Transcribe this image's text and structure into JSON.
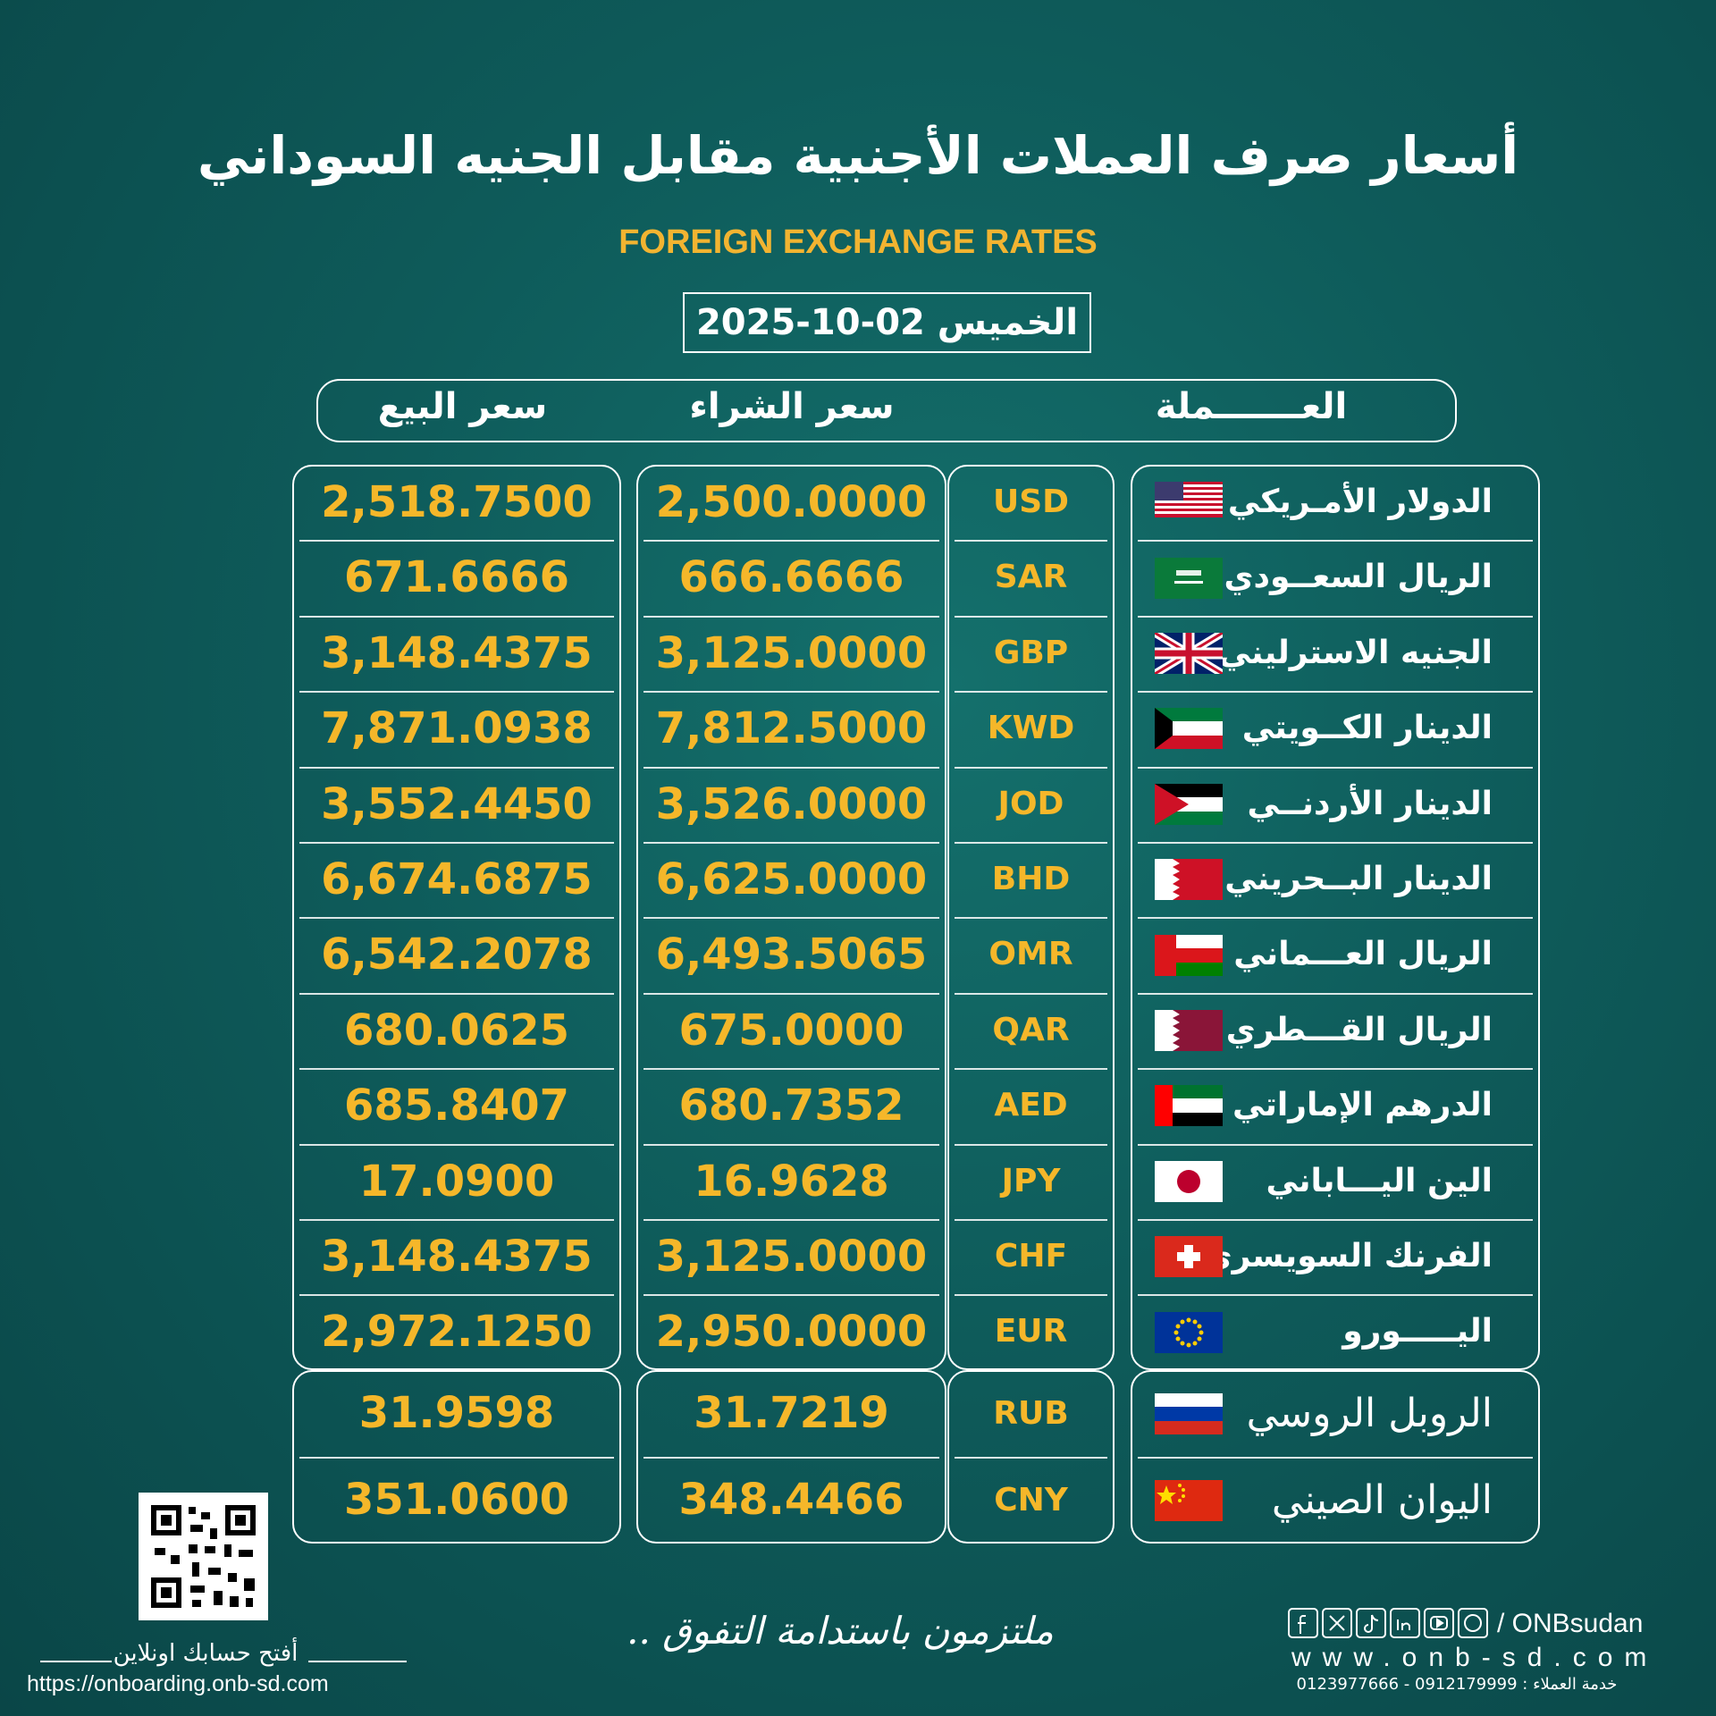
{
  "header": {
    "title": "أسعار صرف العملات الأجنبية مقابل الجنيه السوداني",
    "subtitle": "FOREIGN EXCHANGE RATES",
    "date": "الخميس 02-10-2025"
  },
  "table": {
    "columns": [
      "العـــــــملة",
      "سعر الشراء",
      "سعر البيع"
    ],
    "rows": [
      {
        "name": "الدولار الأمـريكي",
        "code": "USD",
        "buy": "2,500.0000",
        "sell": "2,518.7500"
      },
      {
        "name": "الريال السعــودي",
        "code": "SAR",
        "buy": "666.6666",
        "sell": "671.6666"
      },
      {
        "name": "الجنيه الاسترليني",
        "code": "GBP",
        "buy": "3,125.0000",
        "sell": "3,148.4375"
      },
      {
        "name": "الدينار الكــويتي",
        "code": "KWD",
        "buy": "7,812.5000",
        "sell": "7,871.0938"
      },
      {
        "name": "الدينار الأردنــي",
        "code": "JOD",
        "buy": "3,526.0000",
        "sell": "3,552.4450"
      },
      {
        "name": "الدينار البــحريني",
        "code": "BHD",
        "buy": "6,625.0000",
        "sell": "6,674.6875"
      },
      {
        "name": "الريال العـــماني",
        "code": "OMR",
        "buy": "6,493.5065",
        "sell": "6,542.2078"
      },
      {
        "name": "الريال القـــطري",
        "code": "QAR",
        "buy": "675.0000",
        "sell": "680.0625"
      },
      {
        "name": "الدرهم الإماراتي",
        "code": "AED",
        "buy": "680.7352",
        "sell": "685.8407"
      },
      {
        "name": "الين اليـــاباني",
        "code": "JPY",
        "buy": "16.9628",
        "sell": "17.0900"
      },
      {
        "name": "الفرنك السويسري",
        "code": "CHF",
        "buy": "3,125.0000",
        "sell": "3,148.4375"
      },
      {
        "name": "اليـــــورو",
        "code": "EUR",
        "buy": "2,950.0000",
        "sell": "2,972.1250"
      },
      {
        "name": "الروبل الروسي",
        "code": "RUB",
        "buy": "31.7219",
        "sell": "31.9598"
      },
      {
        "name": "اليوان الصيني",
        "code": "CNY",
        "buy": "348.4466",
        "sell": "351.0600"
      }
    ]
  },
  "footer": {
    "open_account": "أفتح حسابك اونلاين",
    "onboarding_url": "https://onboarding.onb-sd.com",
    "slogan": "ملتزمون باستدامة التفوق ..",
    "social": "/ ONBsudan",
    "website": "www.onb-sd.com",
    "customer_service": "خدمة العملاء : 0912179999 - 0123977666"
  }
}
